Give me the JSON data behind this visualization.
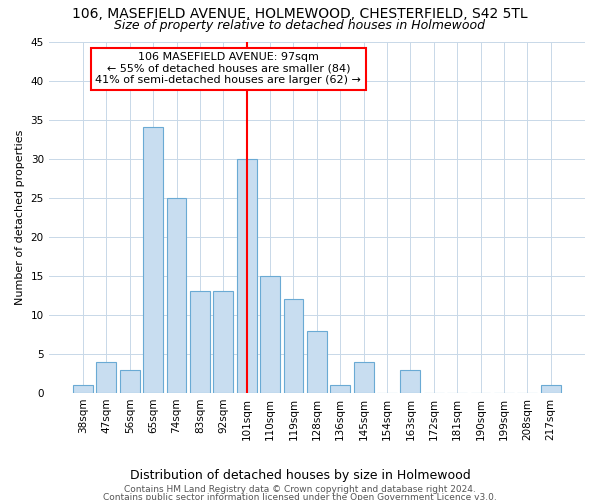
{
  "title1": "106, MASEFIELD AVENUE, HOLMEWOOD, CHESTERFIELD, S42 5TL",
  "title2": "Size of property relative to detached houses in Holmewood",
  "xlabel": "Distribution of detached houses by size in Holmewood",
  "ylabel": "Number of detached properties",
  "categories": [
    "38sqm",
    "47sqm",
    "56sqm",
    "65sqm",
    "74sqm",
    "83sqm",
    "92sqm",
    "101sqm",
    "110sqm",
    "119sqm",
    "128sqm",
    "136sqm",
    "145sqm",
    "154sqm",
    "163sqm",
    "172sqm",
    "181sqm",
    "190sqm",
    "199sqm",
    "208sqm",
    "217sqm"
  ],
  "values": [
    1,
    4,
    3,
    34,
    25,
    13,
    13,
    30,
    15,
    12,
    8,
    1,
    4,
    0,
    3,
    0,
    0,
    0,
    0,
    0,
    1
  ],
  "bar_color": "#c8ddf0",
  "bar_edge_color": "#6aaad4",
  "vline_x_index": 7,
  "vline_color": "red",
  "annotation_line1": "106 MASEFIELD AVENUE: 97sqm",
  "annotation_line2": "← 55% of detached houses are smaller (84)",
  "annotation_line3": "41% of semi-detached houses are larger (62) →",
  "annotation_box_color": "white",
  "annotation_box_edge": "red",
  "ylim": [
    0,
    45
  ],
  "yticks": [
    0,
    5,
    10,
    15,
    20,
    25,
    30,
    35,
    40,
    45
  ],
  "footer1": "Contains HM Land Registry data © Crown copyright and database right 2024.",
  "footer2": "Contains public sector information licensed under the Open Government Licence v3.0.",
  "bg_color": "#ffffff",
  "plot_bg_color": "#ffffff",
  "grid_color": "#c8d8e8",
  "title1_fontsize": 10,
  "title2_fontsize": 9,
  "xlabel_fontsize": 9,
  "ylabel_fontsize": 8,
  "tick_fontsize": 7.5,
  "footer_fontsize": 6.5,
  "ann_fontsize": 8
}
